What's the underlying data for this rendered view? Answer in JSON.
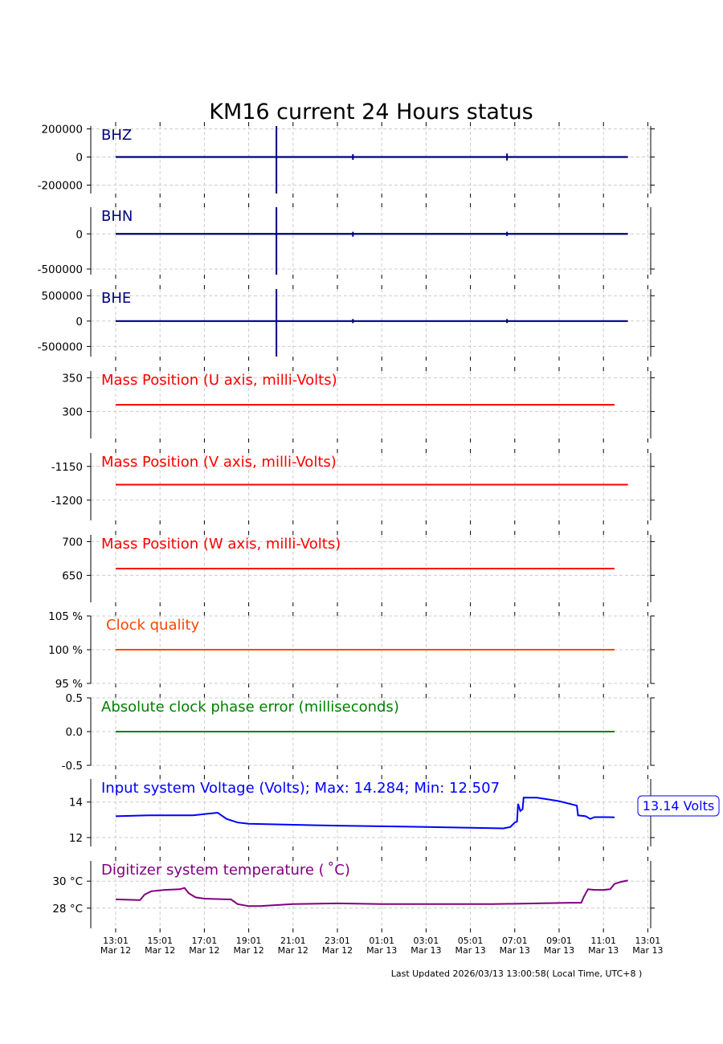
{
  "title": "KM16 current 24 Hours status",
  "footer": "Last Updated 2026/03/13 13:00:58( Local Time, UTC+8 )",
  "voltage_badge": "13.14 Volts",
  "time_ticks": [
    {
      "time": "13:01",
      "date": "Mar 12"
    },
    {
      "time": "15:01",
      "date": "Mar 12"
    },
    {
      "time": "17:01",
      "date": "Mar 12"
    },
    {
      "time": "19:01",
      "date": "Mar 12"
    },
    {
      "time": "21:01",
      "date": "Mar 12"
    },
    {
      "time": "23:01",
      "date": "Mar 12"
    },
    {
      "time": "01:01",
      "date": "Mar 13"
    },
    {
      "time": "03:01",
      "date": "Mar 13"
    },
    {
      "time": "05:01",
      "date": "Mar 13"
    },
    {
      "time": "07:01",
      "date": "Mar 13"
    },
    {
      "time": "09:01",
      "date": "Mar 13"
    },
    {
      "time": "11:01",
      "date": "Mar 13"
    },
    {
      "time": "13:01",
      "date": "Mar 13"
    }
  ],
  "chart_data": [
    {
      "type": "line",
      "label": "BHZ",
      "color": "#000080",
      "ylim": [
        -260000,
        220000
      ],
      "yticks": [
        {
          "v": 200000,
          "t": "200000"
        },
        {
          "v": 0,
          "t": "0"
        },
        {
          "v": -200000,
          "t": "-200000"
        }
      ],
      "baseline": 0,
      "x_end": 23.1,
      "spikes": [
        {
          "x": 7.25,
          "hi": 220000,
          "lo": -260000
        },
        {
          "x": 10.7,
          "hi": 20000,
          "lo": -20000
        },
        {
          "x": 17.65,
          "hi": 25000,
          "lo": -25000
        }
      ]
    },
    {
      "type": "line",
      "label": "BHN",
      "color": "#000080",
      "ylim": [
        -580000,
        380000
      ],
      "yticks": [
        {
          "v": 0,
          "t": "0"
        },
        {
          "v": -500000,
          "t": "-500000"
        }
      ],
      "baseline": 0,
      "x_end": 23.1,
      "spikes": [
        {
          "x": 7.25,
          "hi": 380000,
          "lo": -580000
        },
        {
          "x": 10.7,
          "hi": 30000,
          "lo": -40000
        },
        {
          "x": 17.65,
          "hi": 30000,
          "lo": -30000
        }
      ]
    },
    {
      "type": "line",
      "label": "BHE",
      "color": "#000080",
      "ylim": [
        -700000,
        630000
      ],
      "yticks": [
        {
          "v": 500000,
          "t": "500000"
        },
        {
          "v": 0,
          "t": "0"
        },
        {
          "v": -500000,
          "t": "-500000"
        }
      ],
      "baseline": 0,
      "x_end": 23.1,
      "spikes": [
        {
          "x": 7.25,
          "hi": 630000,
          "lo": -700000
        },
        {
          "x": 10.7,
          "hi": 40000,
          "lo": -40000
        },
        {
          "x": 17.65,
          "hi": 40000,
          "lo": -40000
        }
      ]
    },
    {
      "type": "line",
      "label": "Mass Position (U axis, milli-Volts)",
      "color": "#ff0000",
      "ylim": [
        260,
        360
      ],
      "yticks": [
        {
          "v": 350,
          "t": "350"
        },
        {
          "v": 300,
          "t": "300"
        }
      ],
      "points": [
        [
          0,
          310
        ],
        [
          22.5,
          310
        ]
      ]
    },
    {
      "type": "line",
      "label": "Mass Position (V axis, milli-Volts)",
      "color": "#ff0000",
      "ylim": [
        -1230,
        -1130
      ],
      "yticks": [
        {
          "v": -1150,
          "t": "-1150"
        },
        {
          "v": -1200,
          "t": "-1200"
        }
      ],
      "points": [
        [
          0,
          -1177
        ],
        [
          23.1,
          -1177
        ]
      ]
    },
    {
      "type": "line",
      "label": "Mass Position (W axis, milli-Volts)",
      "color": "#ff0000",
      "ylim": [
        610,
        710
      ],
      "yticks": [
        {
          "v": 700,
          "t": "700"
        },
        {
          "v": 650,
          "t": "650"
        }
      ],
      "points": [
        [
          0,
          660
        ],
        [
          22.5,
          660
        ]
      ]
    },
    {
      "type": "line",
      "label": "Clock quality",
      "color": "#ff4500",
      "ylim": [
        95,
        105
      ],
      "yticks": [
        {
          "v": 105,
          "t": "105 %"
        },
        {
          "v": 100,
          "t": "100 %"
        },
        {
          "v": 95,
          "t": "95 %"
        }
      ],
      "points": [
        [
          0,
          100
        ],
        [
          22.5,
          100
        ]
      ]
    },
    {
      "type": "line",
      "label": "Absolute clock phase error (milliseconds)",
      "color": "#008000",
      "ylim": [
        -0.5,
        0.5
      ],
      "yticks": [
        {
          "v": 0.5,
          "t": "0.5"
        },
        {
          "v": 0.0,
          "t": "0.0"
        },
        {
          "v": -0.5,
          "t": "-0.5"
        }
      ],
      "points": [
        [
          0,
          0
        ],
        [
          22.5,
          0
        ]
      ]
    },
    {
      "type": "line",
      "label": "Input system Voltage (Volts);    Max: 14.284; Min: 12.507",
      "color": "#0000ff",
      "ylim": [
        11.5,
        15.3
      ],
      "yticks": [
        {
          "v": 14,
          "t": "14"
        },
        {
          "v": 12,
          "t": "12"
        }
      ],
      "points": [
        [
          0,
          13.2
        ],
        [
          1.5,
          13.25
        ],
        [
          2.5,
          13.25
        ],
        [
          3.5,
          13.25
        ],
        [
          4.2,
          13.35
        ],
        [
          4.6,
          13.4
        ],
        [
          5.0,
          13.05
        ],
        [
          5.5,
          12.85
        ],
        [
          6.0,
          12.78
        ],
        [
          8.0,
          12.72
        ],
        [
          10.0,
          12.67
        ],
        [
          14.0,
          12.6
        ],
        [
          17.5,
          12.52
        ],
        [
          17.8,
          12.6
        ],
        [
          18.0,
          12.85
        ],
        [
          18.1,
          12.9
        ],
        [
          18.15,
          13.9
        ],
        [
          18.25,
          13.5
        ],
        [
          18.35,
          13.6
        ],
        [
          18.4,
          14.25
        ],
        [
          19.0,
          14.25
        ],
        [
          19.5,
          14.15
        ],
        [
          20.0,
          14.05
        ],
        [
          20.8,
          13.8
        ],
        [
          20.85,
          13.25
        ],
        [
          21.2,
          13.2
        ],
        [
          21.4,
          13.05
        ],
        [
          21.6,
          13.15
        ],
        [
          22.0,
          13.15
        ],
        [
          22.5,
          13.14
        ]
      ]
    },
    {
      "type": "line",
      "label": "Digitizer system temperature ($^\\circ$C)",
      "color": "#800080",
      "ylim": [
        26.5,
        31.5
      ],
      "yticks": [
        {
          "v": 30,
          "t": "30 °C"
        },
        {
          "v": 28,
          "t": "28 °C"
        }
      ],
      "points": [
        [
          0,
          28.65
        ],
        [
          1.0,
          28.6
        ],
        [
          1.1,
          28.6
        ],
        [
          1.3,
          29.0
        ],
        [
          1.6,
          29.25
        ],
        [
          2.2,
          29.35
        ],
        [
          2.9,
          29.4
        ],
        [
          3.1,
          29.5
        ],
        [
          3.3,
          29.1
        ],
        [
          3.6,
          28.8
        ],
        [
          4.0,
          28.7
        ],
        [
          5.0,
          28.65
        ],
        [
          5.2,
          28.65
        ],
        [
          5.5,
          28.3
        ],
        [
          6.0,
          28.15
        ],
        [
          6.5,
          28.15
        ],
        [
          8.0,
          28.3
        ],
        [
          10.0,
          28.35
        ],
        [
          12.0,
          28.3
        ],
        [
          15.0,
          28.3
        ],
        [
          17.0,
          28.3
        ],
        [
          19.0,
          28.35
        ],
        [
          20.5,
          28.4
        ],
        [
          21.0,
          28.4
        ],
        [
          21.1,
          28.8
        ],
        [
          21.3,
          29.4
        ],
        [
          21.6,
          29.35
        ],
        [
          22.0,
          29.35
        ],
        [
          22.3,
          29.4
        ],
        [
          22.5,
          29.8
        ],
        [
          22.8,
          29.95
        ],
        [
          23.1,
          30.05
        ]
      ]
    }
  ]
}
